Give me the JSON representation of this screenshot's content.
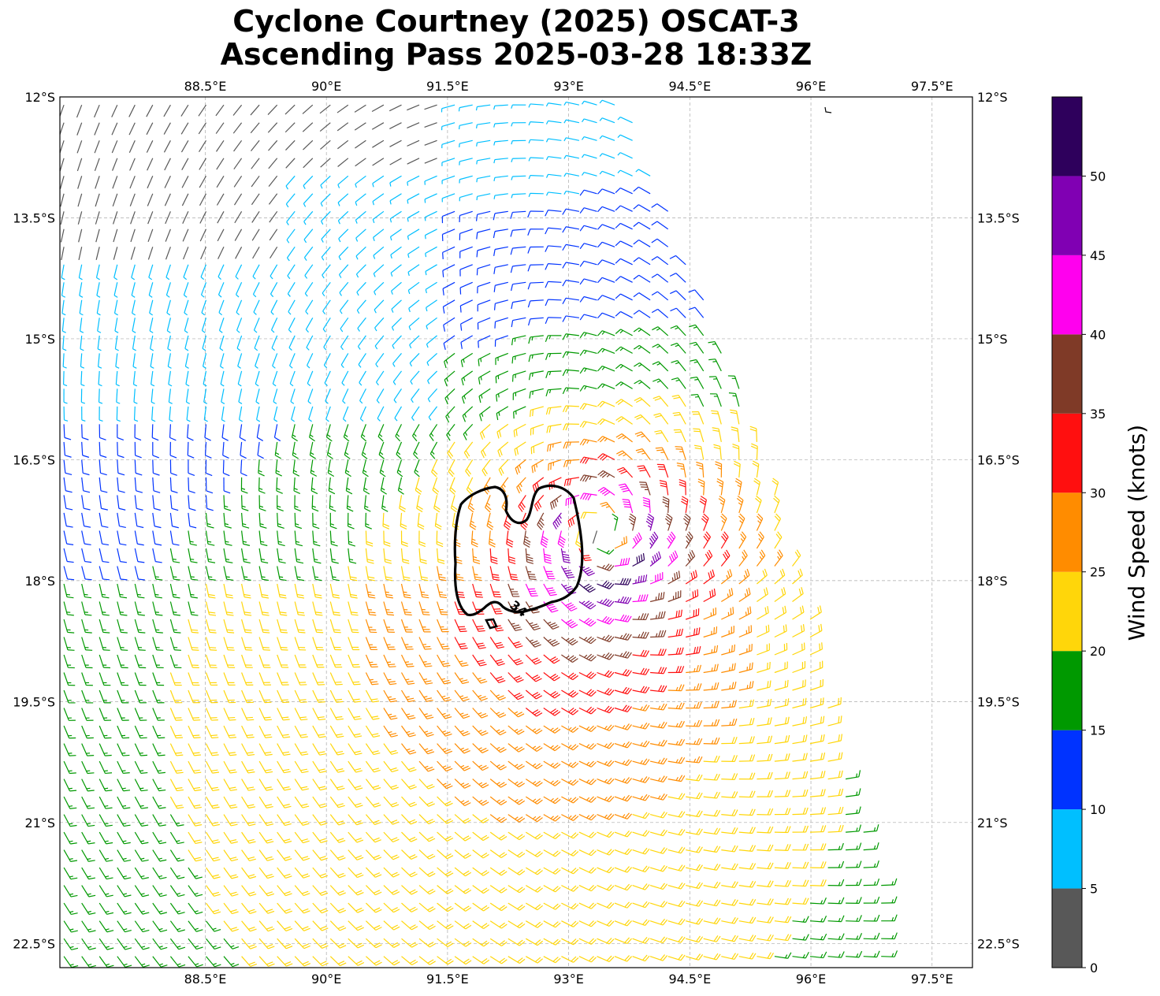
{
  "title": {
    "line1": "Cyclone Courtney (2025) OSCAT-3",
    "line2": "Ascending Pass 2025-03-28 18:33Z"
  },
  "map": {
    "lon_range": [
      86.7,
      98.0
    ],
    "lat_range": [
      -22.8,
      -12.0
    ],
    "lon_ticks": [
      {
        "value": 88.5,
        "label": "88.5°E"
      },
      {
        "value": 90.0,
        "label": "90°E"
      },
      {
        "value": 91.5,
        "label": "91.5°E"
      },
      {
        "value": 93.0,
        "label": "93°E"
      },
      {
        "value": 94.5,
        "label": "94.5°E"
      },
      {
        "value": 96.0,
        "label": "96°E"
      },
      {
        "value": 97.5,
        "label": "97.5°E"
      }
    ],
    "lat_ticks": [
      {
        "value": -12.0,
        "label": "12°S"
      },
      {
        "value": -13.5,
        "label": "13.5°S"
      },
      {
        "value": -15.0,
        "label": "15°S"
      },
      {
        "value": -16.5,
        "label": "16.5°S"
      },
      {
        "value": -18.0,
        "label": "18°S"
      },
      {
        "value": -19.5,
        "label": "19.5°S"
      },
      {
        "value": -21.0,
        "label": "21°S"
      },
      {
        "value": -22.5,
        "label": "22.5°S"
      }
    ],
    "gridlines": true,
    "storm_center": {
      "lon": 93.4,
      "lat": -17.45
    },
    "contour_label": "34",
    "contour_level_knots": 34,
    "swath_east_edge": [
      [
        93.7,
        -12.0
      ],
      [
        94.5,
        -14.0
      ],
      [
        95.3,
        -16.0
      ],
      [
        96.0,
        -18.5
      ],
      [
        96.3,
        -20.0
      ],
      [
        97.0,
        -22.0
      ],
      [
        97.1,
        -22.8
      ]
    ]
  },
  "colorbar": {
    "label": "Wind Speed (knots)",
    "tick_labels": [
      "0",
      "5",
      "10",
      "15",
      "20",
      "25",
      "30",
      "35",
      "40",
      "45",
      "50"
    ],
    "max_value": 55,
    "bins": [
      {
        "min": 0,
        "max": 5,
        "color": "#585858"
      },
      {
        "min": 5,
        "max": 10,
        "color": "#00bfff"
      },
      {
        "min": 10,
        "max": 15,
        "color": "#0033ff"
      },
      {
        "min": 15,
        "max": 20,
        "color": "#009900"
      },
      {
        "min": 20,
        "max": 25,
        "color": "#ffd60a"
      },
      {
        "min": 25,
        "max": 30,
        "color": "#ff8c00"
      },
      {
        "min": 30,
        "max": 35,
        "color": "#ff0f0f"
      },
      {
        "min": 35,
        "max": 40,
        "color": "#7f3a27"
      },
      {
        "min": 40,
        "max": 45,
        "color": "#ff00ee"
      },
      {
        "min": 45,
        "max": 50,
        "color": "#8000b3"
      },
      {
        "min": 50,
        "max": 55,
        "color": "#2e005c"
      }
    ]
  }
}
